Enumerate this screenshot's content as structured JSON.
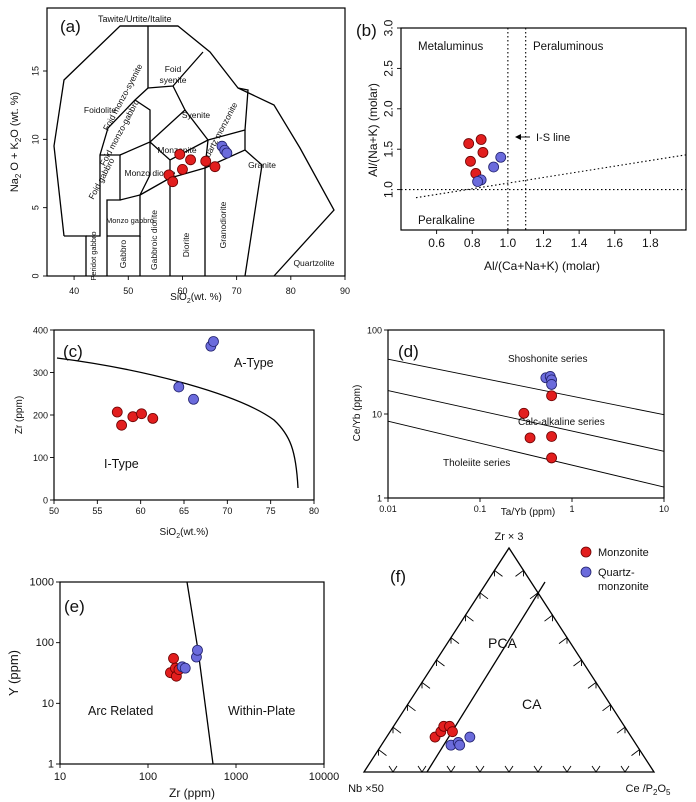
{
  "colors": {
    "monzonite": "#e21e1e",
    "quartz_monzonite": "#6b6bdc"
  },
  "chart_data": [
    {
      "id": "a",
      "type": "scatter",
      "panel_label": "(a)",
      "xlabel": "SiO2(wt.%)",
      "ylabel": "Na2O + K2O (wt.%)",
      "xlim": [
        35,
        90
      ],
      "ylim": [
        0,
        18
      ],
      "xticks": [
        40,
        50,
        60,
        70,
        80,
        90
      ],
      "yticks": [
        0,
        5,
        10,
        15
      ],
      "field_labels": [
        "Tawite/Urtite/Italite",
        "Foid syenite",
        "Foidolite",
        "Foid monzo-syenite",
        "Syenite",
        "Foid monzo-gabbro",
        "Foid gabbro",
        "Monzonite",
        "Quartz monzonite",
        "Monzo diorite",
        "Granite",
        "Monzo gabbro",
        "Peridot gabbro",
        "Gabbro",
        "Gabbroic diorite",
        "Diorite",
        "Granodiorite",
        "Quartzolite"
      ],
      "series": [
        {
          "name": "Monzonite",
          "points": [
            [
              57.5,
              7.4
            ],
            [
              58.2,
              6.9
            ],
            [
              59.5,
              8.9
            ],
            [
              60.0,
              7.8
            ],
            [
              61.5,
              8.5
            ],
            [
              64.3,
              8.4
            ],
            [
              66.0,
              8.0
            ]
          ]
        },
        {
          "name": "Quartz-monzonite",
          "points": [
            [
              67.3,
              9.5
            ],
            [
              67.8,
              9.2
            ],
            [
              68.2,
              9.0
            ]
          ]
        }
      ]
    },
    {
      "id": "b",
      "type": "scatter",
      "panel_label": "(b)",
      "xlabel": "Al/(Ca+Na+K) (molar)",
      "ylabel": "Al/(Na+K) (molar)",
      "xlim": [
        0.4,
        2.0
      ],
      "ylim": [
        0.5,
        3.0
      ],
      "xticks": [
        "0.6",
        "0.8",
        "1.0",
        "1.2",
        "1.4",
        "1.6",
        "1.8"
      ],
      "yticks": [
        "1.0",
        "1.5",
        "2.0",
        "2.5",
        "3.0"
      ],
      "field_labels": [
        "Metaluminus",
        "Peraluminous",
        "Peralkaline"
      ],
      "annotation": "I-S line",
      "series": [
        {
          "name": "Monzonite",
          "points": [
            [
              0.78,
              1.57
            ],
            [
              0.85,
              1.62
            ],
            [
              0.79,
              1.35
            ],
            [
              0.82,
              1.2
            ],
            [
              0.86,
              1.46
            ]
          ]
        },
        {
          "name": "Quartz-monzonite",
          "points": [
            [
              0.96,
              1.4
            ],
            [
              0.92,
              1.28
            ],
            [
              0.85,
              1.12
            ],
            [
              0.83,
              1.1
            ]
          ]
        }
      ]
    },
    {
      "id": "c",
      "type": "scatter",
      "panel_label": "(c)",
      "xlabel": "SiO2(wt.%)",
      "ylabel": "Zr (ppm)",
      "xlim": [
        50,
        80
      ],
      "ylim": [
        0,
        400
      ],
      "xticks": [
        50,
        55,
        60,
        65,
        70,
        75,
        80
      ],
      "yticks": [
        0,
        100,
        200,
        300,
        400
      ],
      "field_labels": [
        "A-Type",
        "I-Type"
      ],
      "series": [
        {
          "name": "Monzonite",
          "points": [
            [
              57.3,
              207
            ],
            [
              57.8,
              176
            ],
            [
              59.1,
              196
            ],
            [
              60.1,
              203
            ],
            [
              61.4,
              192
            ]
          ]
        },
        {
          "name": "Quartz-monzonite",
          "points": [
            [
              64.4,
              266
            ],
            [
              66.1,
              237
            ],
            [
              68.1,
              362
            ],
            [
              68.4,
              373
            ]
          ]
        }
      ]
    },
    {
      "id": "d",
      "type": "scatter",
      "panel_label": "(d)",
      "xlabel": "Ta/Yb (ppm)",
      "ylabel": "Ce/Yb (ppm)",
      "xscale": "log",
      "yscale": "log",
      "xlim": [
        0.01,
        10
      ],
      "ylim": [
        1,
        100
      ],
      "xticks": [
        "0.01",
        "0.1",
        "1",
        "10"
      ],
      "yticks": [
        "1",
        "10",
        "100"
      ],
      "field_labels": [
        "Shoshonite series",
        "Calc-alkaline series",
        "Tholeiite series"
      ],
      "series": [
        {
          "name": "Monzonite",
          "points": [
            [
              0.3,
              10.2
            ],
            [
              0.35,
              5.2
            ],
            [
              0.6,
              16.5
            ],
            [
              0.6,
              5.4
            ],
            [
              0.6,
              3.0
            ]
          ]
        },
        {
          "name": "Quartz-monzonite",
          "points": [
            [
              0.52,
              27
            ],
            [
              0.58,
              28
            ],
            [
              0.6,
              25.5
            ],
            [
              0.6,
              22.5
            ]
          ]
        }
      ]
    },
    {
      "id": "e",
      "type": "scatter",
      "panel_label": "(e)",
      "xlabel": "Zr (ppm)",
      "ylabel": "Y (ppm)",
      "xscale": "log",
      "yscale": "log",
      "xlim": [
        10,
        10000
      ],
      "ylim": [
        1,
        1000
      ],
      "xticks": [
        "10",
        "100",
        "1000",
        "10000"
      ],
      "yticks": [
        "1",
        "10",
        "100",
        "1000"
      ],
      "field_labels": [
        "Arc Related",
        "Within-Plate"
      ],
      "series": [
        {
          "name": "Monzonite",
          "points": [
            [
              180,
              32
            ],
            [
              195,
              55
            ],
            [
              205,
              38
            ],
            [
              210,
              28
            ],
            [
              225,
              36
            ]
          ]
        },
        {
          "name": "Quartz-monzonite",
          "points": [
            [
              245,
              40
            ],
            [
              265,
              38
            ],
            [
              355,
              58
            ],
            [
              365,
              75
            ]
          ]
        }
      ]
    },
    {
      "id": "f",
      "type": "ternary",
      "panel_label": "(f)",
      "apex_labels": {
        "top": "Zr × 3",
        "bottom_left": "Nb ×50",
        "bottom_right": "Ce /P2O5"
      },
      "field_labels": [
        "PCA",
        "CA"
      ],
      "legend": [
        "Monzonite",
        "Quartz-monzonite"
      ],
      "series": [
        {
          "name": "Monzonite",
          "points": [
            [
              0.18,
              0.13
            ],
            [
              0.19,
              0.15
            ],
            [
              0.19,
              0.17
            ],
            [
              0.21,
              0.17
            ],
            [
              0.23,
              0.15
            ]
          ]
        },
        {
          "name": "Quartz-monzonite",
          "points": [
            [
              0.25,
              0.1
            ],
            [
              0.27,
              0.11
            ],
            [
              0.28,
              0.1
            ],
            [
              0.3,
              0.13
            ]
          ]
        }
      ]
    }
  ]
}
